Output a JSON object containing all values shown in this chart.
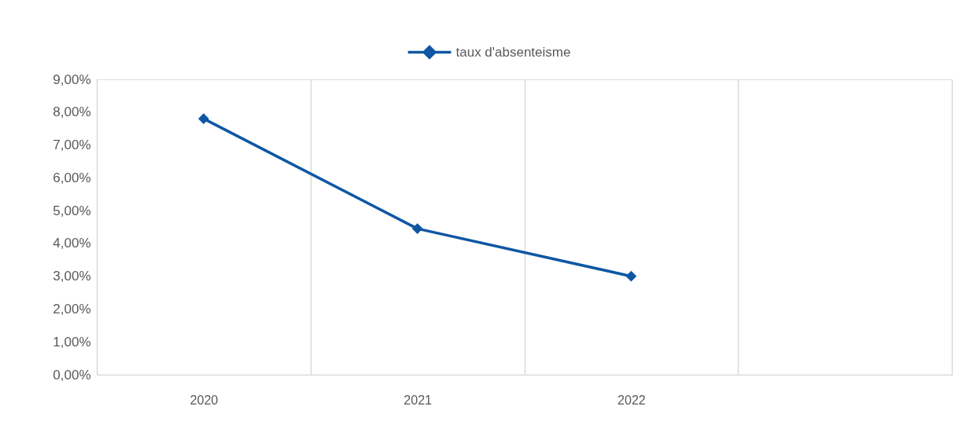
{
  "chart_data": {
    "type": "line",
    "categories": [
      "2020",
      "2021",
      "2022",
      null
    ],
    "series": [
      {
        "name": "taux d'absenteisme",
        "color": "#0e57a4",
        "values": [
          7.8,
          4.45,
          3.0,
          null
        ]
      }
    ],
    "ylim": [
      0,
      9
    ],
    "yticks": [
      {
        "value": 0,
        "label": "0,00%"
      },
      {
        "value": 1,
        "label": "1,00%"
      },
      {
        "value": 2,
        "label": "2,00%"
      },
      {
        "value": 3,
        "label": "3,00%"
      },
      {
        "value": 4,
        "label": "4,00%"
      },
      {
        "value": 5,
        "label": "5,00%"
      },
      {
        "value": 6,
        "label": "6,00%"
      },
      {
        "value": 7,
        "label": "7,00%"
      },
      {
        "value": 8,
        "label": "8,00%"
      },
      {
        "value": 9,
        "label": "9,00%"
      }
    ],
    "grid": "x",
    "legend": "top",
    "marker": "diamond",
    "line_style": "solid"
  }
}
